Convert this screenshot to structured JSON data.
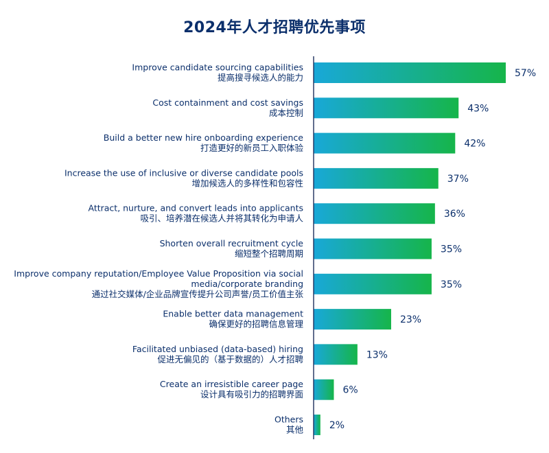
{
  "chart_data": {
    "type": "bar",
    "orientation": "horizontal",
    "title": "2024年人才招聘优先事项",
    "categories": [
      [
        "Improve candidate sourcing capabilities",
        "提高搜寻候选人的能力"
      ],
      [
        "Cost containment and cost savings",
        "成本控制"
      ],
      [
        "Build a better new hire onboarding experience",
        "打造更好的新员工入职体验"
      ],
      [
        "Increase the use of inclusive or diverse candidate pools",
        "增加候选人的多样性和包容性"
      ],
      [
        "Attract, nurture, and convert leads into applicants",
        "吸引、培养潜在候选人并将其转化为申请人"
      ],
      [
        "Shorten overall recruitment cycle",
        "缩短整个招聘周期"
      ],
      [
        "Improve company reputation/Employee Value Proposition via social",
        "media/corporate branding",
        "通过社交媒体/企业品牌宣传提升公司声誉/员工价值主张"
      ],
      [
        "Enable better data management",
        "确保更好的招聘信息管理"
      ],
      [
        "Facilitated unbiased (data-based) hiring",
        "促进无偏见的（基于数据的）人才招聘"
      ],
      [
        "Create an irresistible career page",
        "设计具有吸引力的招聘界面"
      ],
      [
        "Others",
        "其他"
      ]
    ],
    "values": [
      57,
      43,
      42,
      37,
      36,
      35,
      35,
      23,
      13,
      6,
      2
    ],
    "value_labels": [
      "57%",
      "43%",
      "42%",
      "37%",
      "36%",
      "35%",
      "35%",
      "23%",
      "13%",
      "6%",
      "2%"
    ],
    "value_suffix": "%",
    "xlim": [
      0,
      60
    ],
    "grid": false,
    "legend": "none",
    "colors": {
      "bar_gradient_start": "#18a8d8",
      "bar_gradient_end": "#16b54a",
      "axis": "#1c2f5c",
      "text": "#0b2f6b"
    }
  }
}
